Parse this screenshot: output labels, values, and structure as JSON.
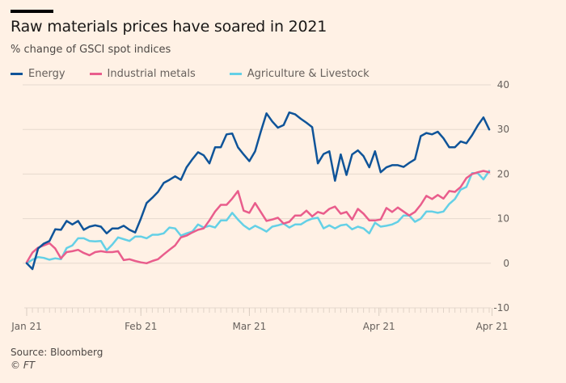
{
  "header": {
    "title": "Raw materials prices have soared in 2021",
    "subtitle": "% change of GSCI spot indices"
  },
  "footer": {
    "source": "Source: Bloomberg",
    "copyright": "© FT"
  },
  "chart_data": {
    "type": "line",
    "title": "Raw materials prices have soared in 2021",
    "subtitle": "% change of GSCI spot indices",
    "xlabel": "",
    "ylabel": "",
    "ylim": [
      -10,
      40
    ],
    "yticks": [
      -10,
      0,
      10,
      20,
      30,
      40
    ],
    "ytick_labels": [
      "-10",
      "0",
      "10",
      "20",
      "30",
      "40"
    ],
    "y_axis_side": "right",
    "grid": true,
    "legend_position": "top-left",
    "x_unit": "trading days from 1 Jan 2021",
    "x_count": 82,
    "xticks": [
      {
        "index": 0,
        "label": "Jan 21"
      },
      {
        "index": 20,
        "label": "Feb 21"
      },
      {
        "index": 39,
        "label": "Mar 21"
      },
      {
        "index": 61.7,
        "label": "Apr 21"
      },
      {
        "index": 81.5,
        "label": "Apr 21"
      }
    ],
    "series": [
      {
        "name": "Energy",
        "color": "#0f5499",
        "values": [
          0,
          -1.3,
          3.3,
          4.4,
          5,
          7.6,
          7.5,
          9.5,
          8.7,
          9.5,
          7.5,
          8.2,
          8.5,
          8.2,
          6.7,
          7.8,
          7.8,
          8.4,
          7.5,
          6.9,
          10,
          13.5,
          14.7,
          16,
          18,
          18.7,
          19.5,
          18.7,
          21.5,
          23.3,
          24.9,
          24.2,
          22.4,
          26,
          26,
          28.9,
          29.1,
          26,
          24.4,
          22.9,
          25.1,
          29.5,
          33.6,
          31.8,
          30.4,
          31,
          33.8,
          33.4,
          32.4,
          31.5,
          30.5,
          22.4,
          24.5,
          25.1,
          18.5,
          24.4,
          19.8,
          24.4,
          25.3,
          24,
          21.5,
          25.1,
          20.4,
          21.5,
          22,
          22,
          21.6,
          22.5,
          23.3,
          28.5,
          29.2,
          28.9,
          29.5,
          28,
          26,
          26,
          27.3,
          26.9,
          28.7,
          30.9,
          32.7,
          30
        ]
      },
      {
        "name": "Industrial metals",
        "color": "#e95d8c",
        "values": [
          0.2,
          2.4,
          3.5,
          4,
          4.5,
          3.3,
          1.1,
          2.5,
          2.7,
          3,
          2.3,
          1.8,
          2.5,
          2.7,
          2.5,
          2.5,
          2.7,
          0.7,
          0.9,
          0.5,
          0.2,
          0,
          0.5,
          0.9,
          2,
          3,
          4,
          5.8,
          6.2,
          6.9,
          7.5,
          7.8,
          9.6,
          11.6,
          13.1,
          13.1,
          14.5,
          16.2,
          11.8,
          11.3,
          13.5,
          11.5,
          9.5,
          9.8,
          10.2,
          8.9,
          9.3,
          10.7,
          10.7,
          11.8,
          10.5,
          11.5,
          11.1,
          12.2,
          12.7,
          11.1,
          11.5,
          9.8,
          12.2,
          11.1,
          9.6,
          9.6,
          9.8,
          12.4,
          11.5,
          12.5,
          11.6,
          10.7,
          11.5,
          13.1,
          15.1,
          14.4,
          15.3,
          14.5,
          16.2,
          16,
          17.1,
          19.1,
          20,
          20.4,
          20.7,
          20.4
        ]
      },
      {
        "name": "Agriculture & Livestock",
        "color": "#64d0e6",
        "values": [
          0,
          0.8,
          1.4,
          1.2,
          0.8,
          1.1,
          0.9,
          3.4,
          4,
          5.6,
          5.6,
          5,
          4.9,
          5,
          2.9,
          4.2,
          5.8,
          5.4,
          5,
          6,
          6,
          5.6,
          6.4,
          6.4,
          6.7,
          8,
          7.8,
          6.2,
          6.7,
          7.1,
          8.7,
          8,
          8.4,
          8,
          9.6,
          9.6,
          11.3,
          9.8,
          8.5,
          7.6,
          8.4,
          7.8,
          7.1,
          8.2,
          8.5,
          8.9,
          8,
          8.7,
          8.7,
          9.5,
          10,
          10.2,
          7.8,
          8.5,
          7.8,
          8.5,
          8.7,
          7.6,
          8.2,
          7.8,
          6.7,
          9.1,
          8.2,
          8.4,
          8.7,
          9.3,
          10.7,
          10.7,
          9.3,
          10,
          11.6,
          11.6,
          11.3,
          11.6,
          13.3,
          14.4,
          16.5,
          17.1,
          20.2,
          20.2,
          18.8,
          20.7
        ]
      }
    ]
  }
}
